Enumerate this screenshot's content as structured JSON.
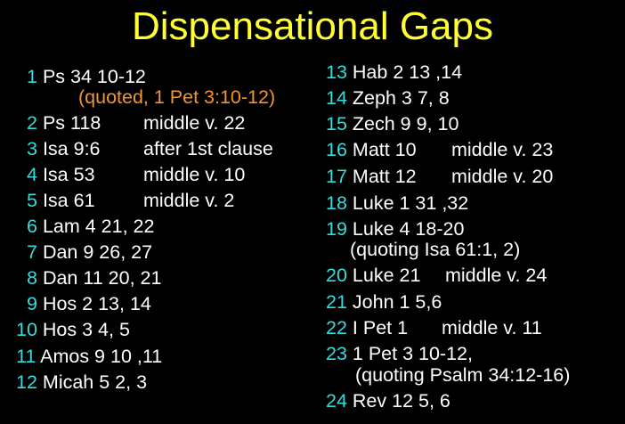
{
  "title": "Dispensational Gaps",
  "left": [
    {
      "num": "1",
      "ref": "Ps 34 10-12",
      "note": ""
    },
    {
      "num": "2",
      "ref": "Ps 118",
      "note": "middle v. 22"
    },
    {
      "num": "3",
      "ref": "Isa 9:6",
      "note": "after 1st clause"
    },
    {
      "num": "4",
      "ref": "Isa 53",
      "note": "middle v. 10"
    },
    {
      "num": "5",
      "ref": "Isa 61",
      "note": "middle v. 2"
    },
    {
      "num": "6",
      "ref": "Lam 4 21, 22",
      "note": ""
    },
    {
      "num": "7",
      "ref": "Dan 9 26, 27",
      "note": ""
    },
    {
      "num": "8",
      "ref": "Dan 11 20, 21",
      "note": ""
    },
    {
      "num": "9",
      "ref": "Hos 2 13, 14",
      "note": ""
    },
    {
      "num": "10",
      "ref": "Hos 3 4, 5",
      "note": ""
    },
    {
      "num": "11",
      "ref": "Amos 9 10 ,11",
      "note": ""
    },
    {
      "num": "12",
      "ref": "Micah 5 2, 3",
      "note": ""
    }
  ],
  "left_sub": "(quoted, 1 Pet 3:10-12)",
  "right": [
    {
      "num": "13",
      "ref": "Hab 2 13 ,14",
      "note": ""
    },
    {
      "num": "14",
      "ref": "Zeph 3 7, 8",
      "note": ""
    },
    {
      "num": "15",
      "ref": "Zech 9 9, 10",
      "note": ""
    },
    {
      "num": "16",
      "ref": "Matt 10",
      "note": "middle v. 23"
    },
    {
      "num": "17",
      "ref": "Matt 12",
      "note": "middle v. 20"
    },
    {
      "num": "18",
      "ref": "Luke 1 31 ,32",
      "note": ""
    },
    {
      "num": "19",
      "ref": "Luke 4 18-20",
      "note": ""
    },
    {
      "num": "20",
      "ref": "Luke 21",
      "note": "middle v. 24"
    },
    {
      "num": "21",
      "ref": "John 1 5,6",
      "note": ""
    },
    {
      "num": "22",
      "ref": "I Pet 1",
      "note": "middle v. 11"
    },
    {
      "num": "23",
      "ref": "1 Pet 3 10-12,",
      "note": ""
    },
    {
      "num": "24",
      "ref": "Rev 12 5, 6",
      "note": ""
    }
  ],
  "right_sub_19": "(quoting Isa 61:1, 2)",
  "right_sub_23": "(quoting Psalm 34:12-16)",
  "colors": {
    "background": "#000000",
    "title": "#ffff33",
    "number": "#33dddd",
    "quote": "#f29433",
    "text": "#ffffff"
  }
}
